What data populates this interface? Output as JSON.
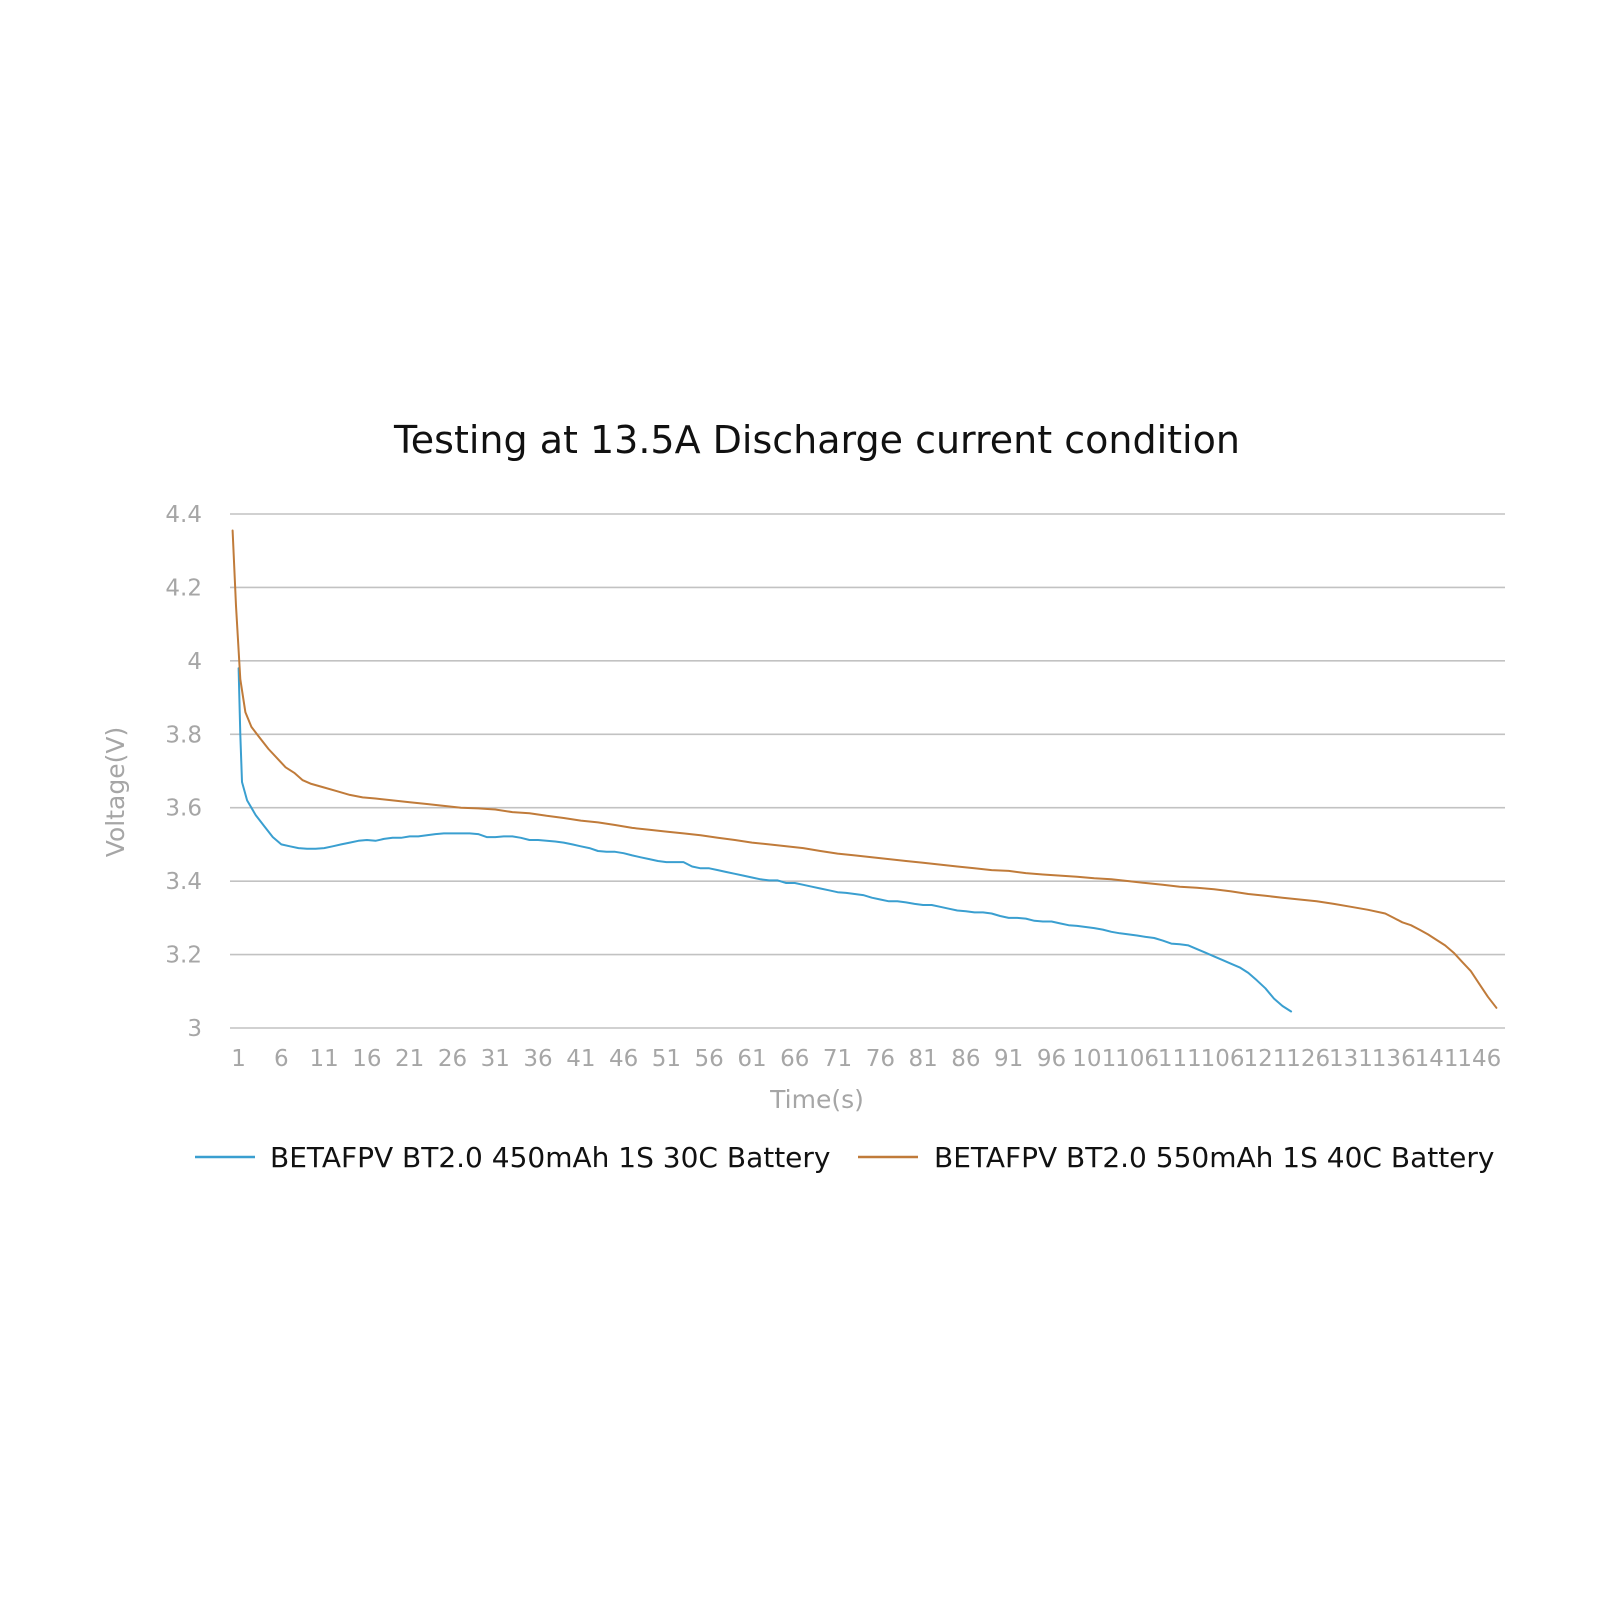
{
  "chart_data": {
    "type": "line",
    "title": "Testing at 13.5A Discharge current condition",
    "xlabel": "Time(s)",
    "ylabel": "Voltage(V)",
    "ylim": [
      3,
      4.4
    ],
    "yticks": [
      "3",
      "3.2",
      "3.4",
      "3.6",
      "3.8",
      "4",
      "4.2",
      "4.4"
    ],
    "xticks": [
      "1",
      "6",
      "11",
      "16",
      "21",
      "26",
      "31",
      "36",
      "41",
      "46",
      "51",
      "56",
      "61",
      "66",
      "71",
      "76",
      "81",
      "86",
      "91",
      "96",
      "101",
      "106",
      "111",
      "106",
      "121",
      "126",
      "131",
      "136",
      "141",
      "146"
    ],
    "grid": true,
    "legend_position": "bottom",
    "series": [
      {
        "name": "BETAFPV BT2.0 450mAh 1S 30C Battery",
        "color": "#3a9fd0",
        "x": [
          1,
          1.2,
          1.4,
          2,
          3,
          4,
          5,
          6,
          7,
          8,
          9,
          10,
          11,
          12,
          13,
          14,
          15,
          16,
          17,
          18,
          19,
          20,
          21,
          22,
          23,
          24,
          25,
          26,
          27,
          28,
          29,
          30,
          31,
          32,
          33,
          34,
          35,
          36,
          37,
          38,
          39,
          40,
          41,
          42,
          43,
          44,
          45,
          46,
          47,
          48,
          49,
          50,
          51,
          52,
          53,
          54,
          55,
          56,
          57,
          58,
          59,
          60,
          61,
          62,
          63,
          64,
          65,
          66,
          67,
          68,
          69,
          70,
          71,
          72,
          73,
          74,
          75,
          76,
          77,
          78,
          79,
          80,
          81,
          82,
          83,
          84,
          85,
          86,
          87,
          88,
          89,
          90,
          91,
          92,
          93,
          94,
          95,
          96,
          97,
          98,
          99,
          100,
          101,
          102,
          103,
          104,
          105,
          106,
          107,
          108,
          109,
          110,
          111,
          112,
          113,
          114,
          115,
          116,
          117,
          118,
          119,
          120,
          121,
          122,
          123,
          124
        ],
        "values": [
          3.98,
          3.8,
          3.67,
          3.62,
          3.58,
          3.55,
          3.52,
          3.5,
          3.495,
          3.49,
          3.488,
          3.488,
          3.49,
          3.495,
          3.5,
          3.505,
          3.51,
          3.512,
          3.51,
          3.515,
          3.518,
          3.518,
          3.522,
          3.522,
          3.525,
          3.528,
          3.53,
          3.53,
          3.53,
          3.53,
          3.528,
          3.52,
          3.52,
          3.522,
          3.522,
          3.518,
          3.512,
          3.512,
          3.51,
          3.508,
          3.505,
          3.5,
          3.495,
          3.49,
          3.482,
          3.48,
          3.48,
          3.476,
          3.47,
          3.465,
          3.46,
          3.455,
          3.452,
          3.452,
          3.452,
          3.44,
          3.435,
          3.435,
          3.43,
          3.425,
          3.42,
          3.415,
          3.41,
          3.405,
          3.402,
          3.402,
          3.395,
          3.395,
          3.39,
          3.385,
          3.38,
          3.375,
          3.37,
          3.368,
          3.365,
          3.362,
          3.355,
          3.35,
          3.345,
          3.345,
          3.342,
          3.338,
          3.335,
          3.335,
          3.33,
          3.325,
          3.32,
          3.318,
          3.315,
          3.315,
          3.312,
          3.305,
          3.3,
          3.3,
          3.298,
          3.292,
          3.29,
          3.29,
          3.285,
          3.28,
          3.278,
          3.275,
          3.272,
          3.268,
          3.262,
          3.258,
          3.255,
          3.252,
          3.248,
          3.245,
          3.238,
          3.23,
          3.228,
          3.225,
          3.215,
          3.205,
          3.195,
          3.185,
          3.175,
          3.165,
          3.15,
          3.13,
          3.108,
          3.08,
          3.06,
          3.045
        ]
      },
      {
        "name": "BETAFPV BT2.0 550mAh 1S 40C Battery",
        "color": "#c07b3a",
        "x": [
          0.3,
          0.7,
          1.2,
          1.8,
          2.5,
          3.5,
          4.5,
          5.5,
          6.5,
          7.5,
          8.5,
          9.5,
          11,
          12.5,
          14,
          15.5,
          17,
          19,
          21,
          23,
          25,
          27,
          29,
          31,
          33,
          35,
          37,
          39,
          41,
          43,
          45,
          47,
          49,
          51,
          53,
          55,
          57,
          59,
          61,
          63,
          65,
          67,
          69,
          71,
          73,
          75,
          77,
          79,
          81,
          83,
          85,
          87,
          89,
          91,
          93,
          95,
          97,
          99,
          101,
          103,
          105,
          107,
          109,
          111,
          113,
          115,
          117,
          119,
          121,
          123,
          125,
          127,
          129,
          131,
          133,
          135,
          136,
          137,
          138,
          139,
          140,
          141,
          142,
          143,
          144,
          145,
          146,
          147,
          148
        ],
        "values": [
          4.355,
          4.15,
          3.95,
          3.86,
          3.82,
          3.79,
          3.76,
          3.735,
          3.71,
          3.695,
          3.675,
          3.665,
          3.655,
          3.645,
          3.635,
          3.628,
          3.625,
          3.62,
          3.615,
          3.61,
          3.605,
          3.6,
          3.598,
          3.595,
          3.588,
          3.585,
          3.578,
          3.572,
          3.565,
          3.56,
          3.553,
          3.545,
          3.54,
          3.535,
          3.53,
          3.525,
          3.518,
          3.512,
          3.505,
          3.5,
          3.495,
          3.49,
          3.482,
          3.475,
          3.47,
          3.465,
          3.46,
          3.455,
          3.45,
          3.445,
          3.44,
          3.435,
          3.43,
          3.428,
          3.422,
          3.418,
          3.415,
          3.412,
          3.408,
          3.405,
          3.4,
          3.395,
          3.39,
          3.385,
          3.382,
          3.378,
          3.372,
          3.365,
          3.36,
          3.355,
          3.35,
          3.345,
          3.338,
          3.33,
          3.322,
          3.312,
          3.3,
          3.288,
          3.28,
          3.268,
          3.255,
          3.24,
          3.225,
          3.205,
          3.18,
          3.155,
          3.12,
          3.085,
          3.055
        ]
      }
    ]
  }
}
